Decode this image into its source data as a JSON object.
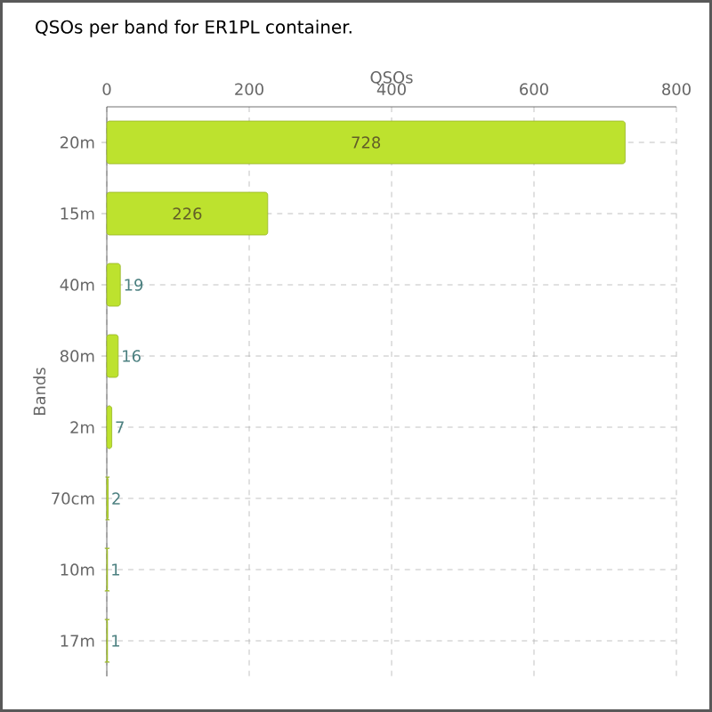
{
  "chart_data": {
    "type": "bar",
    "orientation": "horizontal",
    "title": "QSOs per band for ER1PL container.",
    "xlabel": "QSOs",
    "ylabel": "Bands",
    "categories": [
      "20m",
      "15m",
      "40m",
      "80m",
      "2m",
      "70cm",
      "10m",
      "17m"
    ],
    "values": [
      728,
      226,
      19,
      16,
      7,
      2,
      1,
      1
    ],
    "color": "#bde22e",
    "xlim": [
      0,
      800
    ],
    "xticks": [
      0,
      200,
      400,
      600,
      800
    ],
    "grid": true,
    "data_labels": true
  }
}
